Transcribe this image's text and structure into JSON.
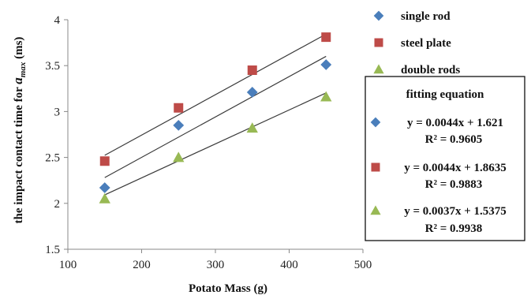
{
  "chart_data": {
    "type": "scatter",
    "xlabel": "Potato Mass (g)",
    "ylabel": {
      "prefix": "the impact contact time for ",
      "var": "a",
      "sub": "max",
      "suffix": " (ms)"
    },
    "xlim": [
      100,
      500
    ],
    "ylim": [
      1.5,
      4
    ],
    "xticks": [
      "100",
      "200",
      "300",
      "400",
      "500"
    ],
    "yticks": [
      "1.5",
      "2",
      "2.5",
      "3",
      "3.5",
      "4"
    ],
    "grid": false,
    "series": [
      {
        "name": "single rod",
        "marker": "diamond",
        "color": "#4a7ebb",
        "x": [
          150,
          250,
          350,
          450
        ],
        "y": [
          2.17,
          2.85,
          3.21,
          3.51
        ],
        "fit": {
          "slope": 0.0044,
          "intercept": 1.621,
          "equation": "y = 0.0044x + 1.621",
          "r2": "R² = 0.9605"
        }
      },
      {
        "name": "steel plate",
        "marker": "square",
        "color": "#be4b48",
        "x": [
          150,
          250,
          350,
          450
        ],
        "y": [
          2.46,
          3.04,
          3.45,
          3.81
        ],
        "fit": {
          "slope": 0.0044,
          "intercept": 1.8635,
          "equation": "y = 0.0044x + 1.8635",
          "r2": "R² = 0.9883"
        }
      },
      {
        "name": "double rods",
        "marker": "triangle",
        "color": "#98b954",
        "x": [
          150,
          250,
          350,
          450
        ],
        "y": [
          2.05,
          2.5,
          2.82,
          3.16
        ],
        "fit": {
          "slope": 0.0037,
          "intercept": 1.5375,
          "equation": "y = 0.0037x + 1.5375",
          "r2": "R² = 0.9938"
        }
      }
    ],
    "fit_box_title": "fitting equation",
    "legend_position": "right"
  }
}
